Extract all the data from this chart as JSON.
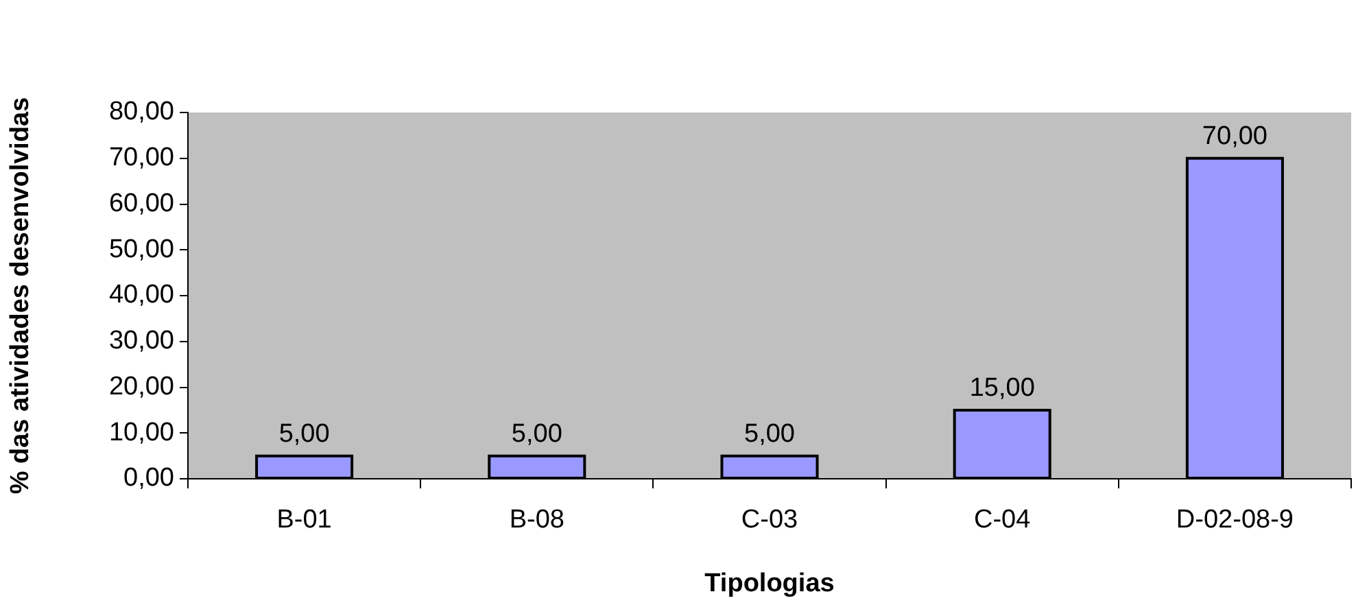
{
  "chart_data": {
    "type": "bar",
    "xlabel": "Tipologias",
    "ylabel": "% das atividades desenvolvidas",
    "categories": [
      "B-01",
      "B-08",
      "C-03",
      "C-04",
      "D-02-08-9"
    ],
    "values": [
      5,
      5,
      5,
      15,
      70
    ],
    "color": "#9999ff",
    "value_labels": [
      "5,00",
      "5,00",
      "5,00",
      "15,00",
      "70,00"
    ],
    "ylim": [
      0,
      80
    ],
    "yticks": [
      {
        "value": 0,
        "label": "0,00"
      },
      {
        "value": 10,
        "label": "10,00"
      },
      {
        "value": 20,
        "label": "20,00"
      },
      {
        "value": 30,
        "label": "30,00"
      },
      {
        "value": 40,
        "label": "40,00"
      },
      {
        "value": 50,
        "label": "50,00"
      },
      {
        "value": 60,
        "label": "60,00"
      },
      {
        "value": 70,
        "label": "70,00"
      },
      {
        "value": 80,
        "label": "80,00"
      }
    ],
    "grid": false,
    "legend": false
  }
}
